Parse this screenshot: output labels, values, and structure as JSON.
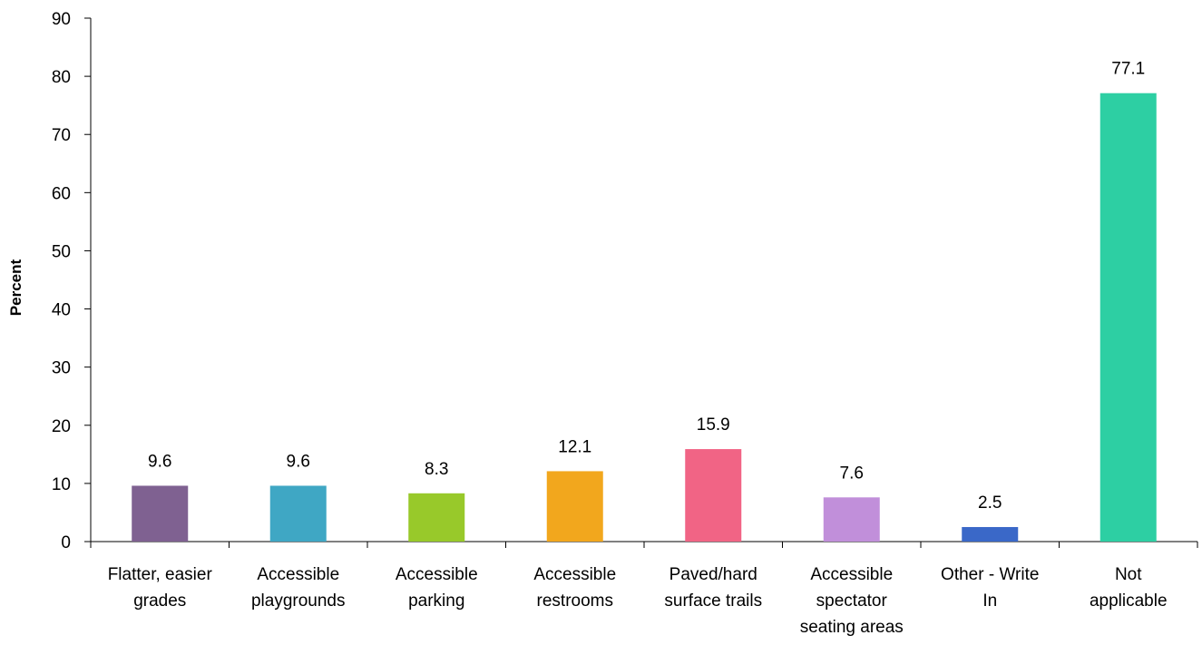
{
  "chart_data": {
    "type": "bar",
    "title": "",
    "xlabel": "",
    "ylabel": "Percent",
    "ylim": [
      0,
      90
    ],
    "ytick_step": 10,
    "grid": false,
    "legend": "none",
    "categories": [
      [
        "Flatter, easier",
        "grades"
      ],
      [
        "Accessible",
        "playgrounds"
      ],
      [
        "Accessible",
        "parking"
      ],
      [
        "Accessible",
        "restrooms"
      ],
      [
        "Paved/hard",
        "surface trails"
      ],
      [
        "Accessible",
        "spectator",
        "seating areas"
      ],
      [
        "Other - Write",
        "In"
      ],
      [
        "Not",
        "applicable"
      ]
    ],
    "values": [
      9.6,
      9.6,
      8.3,
      12.1,
      15.9,
      7.6,
      2.5,
      77.1
    ],
    "value_labels": [
      "9.6",
      "9.6",
      "8.3",
      "12.1",
      "15.9",
      "7.6",
      "2.5",
      "77.1"
    ],
    "colors": [
      "#7f6191",
      "#3fa7c4",
      "#98c92a",
      "#f2a71d",
      "#f16485",
      "#c18fda",
      "#3a68c8",
      "#2dcfa3"
    ]
  }
}
